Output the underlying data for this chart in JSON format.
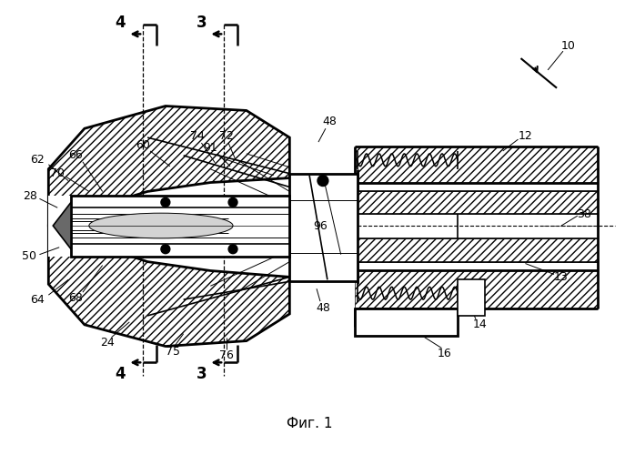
{
  "bg_color": "#ffffff",
  "title": "Фиг. 1",
  "title_fontsize": 11,
  "fig_width": 6.98,
  "fig_height": 5.0,
  "dpi": 100
}
